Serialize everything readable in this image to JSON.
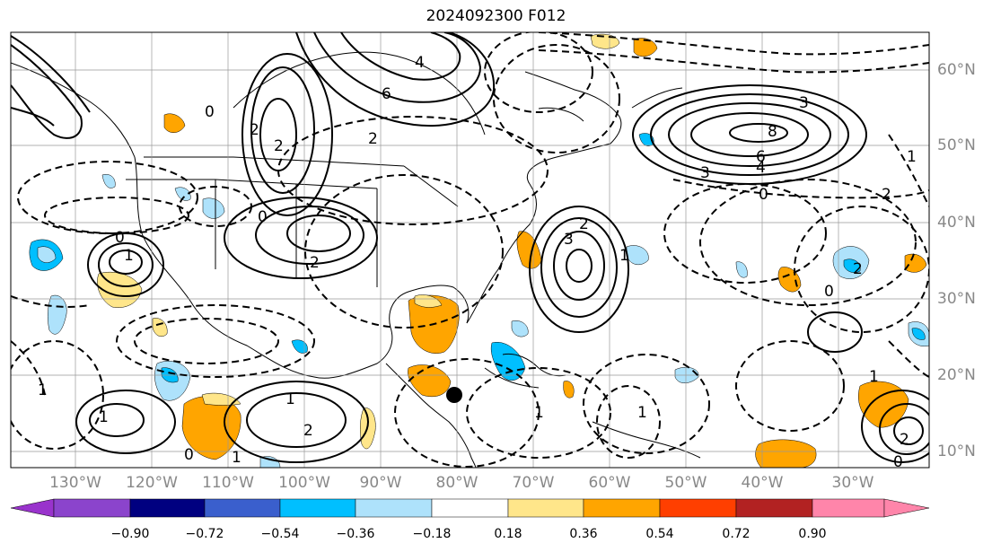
{
  "title": "2024092300 F012",
  "lon_labels": [
    "130°W",
    "120°W",
    "110°W",
    "100°W",
    "90°W",
    "80°W",
    "70°W",
    "60°W",
    "50°W",
    "40°W",
    "30°W"
  ],
  "lat_labels": [
    "60°N",
    "50°N",
    "40°N",
    "30°N",
    "20°N",
    "10°N"
  ],
  "colorbar": {
    "tick_labels": [
      "−0.90",
      "−0.72",
      "−0.54",
      "−0.36",
      "−0.18",
      "0.18",
      "0.36",
      "0.54",
      "0.72",
      "0.90"
    ],
    "colors": [
      "#9933cc",
      "#8b44cc",
      "#000080",
      "#3a5fcd",
      "#00bfff",
      "#aee2fb",
      "#ffffff",
      "#ffe68a",
      "#ffa500",
      "#ff3f00",
      "#b22222",
      "#ff85aa"
    ]
  },
  "contour_labels": [
    "2",
    "2",
    "0",
    "6",
    "4",
    "2",
    "3",
    "8",
    "6",
    "4",
    "3",
    "0",
    "2",
    "1",
    "0",
    "2",
    "2",
    "3",
    "1",
    "0",
    "1",
    "1",
    "1",
    "2",
    "1",
    "0",
    "1",
    "2",
    "1",
    "0",
    "1",
    "1",
    "2",
    "0"
  ],
  "storm_marker": "black-circle",
  "shading_colors": {
    "warm": "#ffa500",
    "light_warm": "#ffe68a",
    "cool": "#00bfff",
    "light_cool": "#aee2fb"
  }
}
